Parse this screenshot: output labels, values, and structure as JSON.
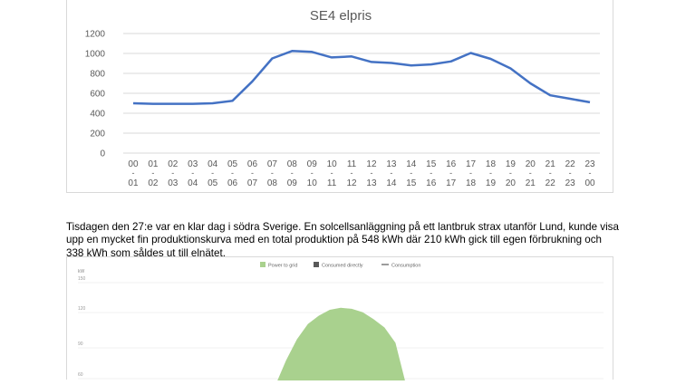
{
  "paragraph": "Tisdagen den 27:e var en klar dag i södra Sverige. En solcellsanläggning på ett lantbruk strax utanför Lund, kunde visa upp en mycket fin produktionskurva med en total produktion på 548 kWh där 210 kWh gick till egen förbrukning och 338 kWh som såldes ut till elnätet.",
  "chart_data": [
    {
      "type": "line",
      "title": "SE4 elpris",
      "xlabel": "",
      "ylabel": "",
      "ylim": [
        0,
        1200
      ],
      "yticks": [
        0,
        200,
        400,
        600,
        800,
        1000,
        1200
      ],
      "grid": true,
      "categories_top": [
        "00",
        "01",
        "02",
        "03",
        "04",
        "05",
        "06",
        "07",
        "08",
        "09",
        "10",
        "11",
        "12",
        "13",
        "14",
        "15",
        "16",
        "17",
        "18",
        "19",
        "20",
        "21",
        "22",
        "23"
      ],
      "categories_sep": "-",
      "categories_bottom": [
        "01",
        "02",
        "03",
        "04",
        "05",
        "06",
        "07",
        "08",
        "09",
        "10",
        "11",
        "12",
        "13",
        "14",
        "15",
        "16",
        "17",
        "18",
        "19",
        "20",
        "21",
        "22",
        "23",
        "00"
      ],
      "values": [
        500,
        495,
        495,
        495,
        500,
        525,
        720,
        950,
        1025,
        1015,
        960,
        970,
        915,
        905,
        880,
        890,
        920,
        1005,
        945,
        850,
        700,
        580,
        545,
        510
      ],
      "line_color": "#4472c4"
    },
    {
      "type": "area",
      "ylabel": "kW",
      "yticks": [
        60,
        90,
        120,
        150
      ],
      "legend_position": "top-center",
      "legend": [
        {
          "label": "Power to grid",
          "color": "#a9d18e",
          "symbol": "square"
        },
        {
          "label": "Consumed directly",
          "color": "#595959",
          "symbol": "square"
        },
        {
          "label": "Consumption",
          "color": "#595959",
          "symbol": "line"
        }
      ],
      "series": [
        {
          "name": "Power to grid",
          "x": [
            9.0,
            9.5,
            10.0,
            10.5,
            11.0,
            11.5,
            12.0,
            12.5,
            13.0,
            13.5,
            14.0,
            14.5,
            15.0
          ],
          "values": [
            50,
            75,
            95,
            108,
            115,
            120,
            122,
            121,
            118,
            112,
            105,
            92,
            50
          ],
          "color": "#a9d18e"
        }
      ]
    }
  ]
}
